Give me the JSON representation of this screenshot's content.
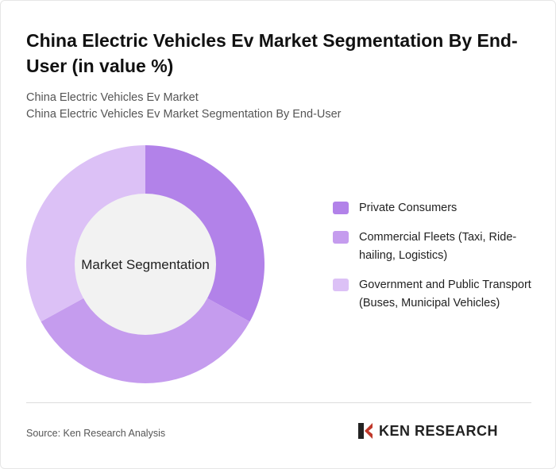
{
  "title": "China Electric Vehicles Ev Market Segmentation By End-User (in value %)",
  "subtitle_1": "China Electric Vehicles Ev Market",
  "subtitle_2": "China Electric Vehicles Ev Market Segmentation By End-User",
  "chart_data": {
    "type": "pie",
    "variant": "donut",
    "center_label": "Market Segmentation",
    "categories": [
      "Private Consumers",
      "Commercial Fleets (Taxi, Ride-hailing, Logistics)",
      "Government and Public Transport (Buses, Municipal Vehicles)"
    ],
    "values": [
      33,
      34,
      33
    ],
    "colors": [
      "#b282e9",
      "#c59cee",
      "#dcc1f6"
    ],
    "legend_position": "right"
  },
  "source": "Source: Ken Research Analysis",
  "logo_text": "KEN RESEARCH"
}
